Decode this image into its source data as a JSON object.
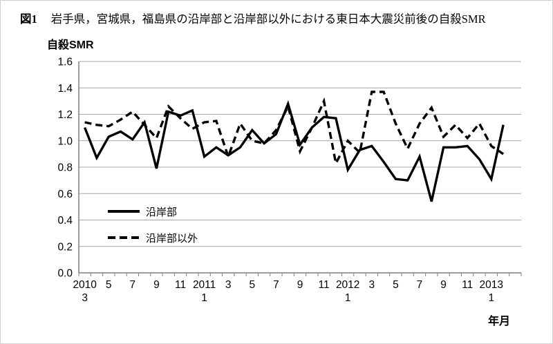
{
  "figure": {
    "label": "図1",
    "title": "岩手県，宮城県，福島県の沿岸部と沿岸部以外における東日本大震災前後の自殺SMR",
    "y_axis_title": "自殺SMR",
    "x_axis_title": "年月"
  },
  "legend": {
    "series1_label": "沿岸部",
    "series2_label": "沿岸部以外"
  },
  "colors": {
    "axis": "#7f7f7f",
    "gridline": "#a6a6a6",
    "series": "#000000",
    "text": "#000000"
  },
  "chart_data": {
    "type": "line",
    "title": "岩手県，宮城県，福島県の沿岸部と沿岸部以外における東日本大震災前後の自殺SMR",
    "xlabel": "年月",
    "ylabel": "自殺SMR",
    "ylim": [
      0.0,
      1.6
    ],
    "ytick_step": 0.2,
    "grid": true,
    "legend_position": "inside bottom-left",
    "categories": [
      "2010/3",
      "2010/4",
      "2010/5",
      "2010/6",
      "2010/7",
      "2010/8",
      "2010/9",
      "2010/10",
      "2010/11",
      "2010/12",
      "2011/1",
      "2011/2",
      "2011/3",
      "2011/4",
      "2011/5",
      "2011/6",
      "2011/7",
      "2011/8",
      "2011/9",
      "2011/10",
      "2011/11",
      "2011/12",
      "2012/1",
      "2012/2",
      "2012/3",
      "2012/4",
      "2012/5",
      "2012/6",
      "2012/7",
      "2012/8",
      "2012/9",
      "2012/10",
      "2012/11",
      "2012/12",
      "2013/1",
      "2013/2"
    ],
    "series": [
      {
        "name": "沿岸部",
        "style": "solid",
        "color": "#000000",
        "values": [
          1.1,
          0.87,
          1.03,
          1.07,
          1.01,
          1.14,
          0.79,
          1.22,
          1.19,
          1.23,
          0.88,
          0.95,
          0.89,
          0.95,
          1.08,
          0.98,
          1.05,
          1.28,
          0.97,
          1.1,
          1.18,
          1.17,
          0.78,
          0.93,
          0.96,
          0.84,
          0.71,
          0.7,
          0.88,
          0.54,
          0.95,
          0.95,
          0.96,
          0.86,
          0.71,
          1.12
        ]
      },
      {
        "name": "沿岸部以外",
        "style": "dashed",
        "color": "#000000",
        "values": [
          1.14,
          1.12,
          1.11,
          1.16,
          1.22,
          1.12,
          1.02,
          1.26,
          1.17,
          1.09,
          1.14,
          1.15,
          0.88,
          1.13,
          1.0,
          0.98,
          1.08,
          1.26,
          0.92,
          1.1,
          1.3,
          0.83,
          1.0,
          0.91,
          1.37,
          1.37,
          1.13,
          0.94,
          1.13,
          1.25,
          1.03,
          1.12,
          1.02,
          1.13,
          0.96,
          0.9
        ]
      }
    ]
  }
}
